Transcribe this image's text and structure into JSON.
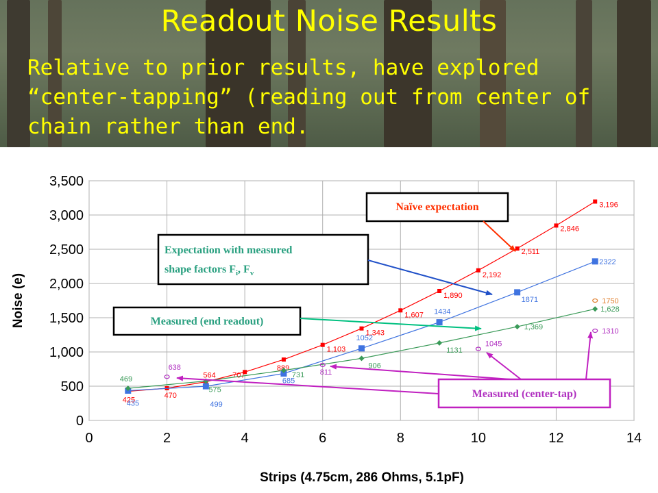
{
  "slide": {
    "title": "Readout Noise Results",
    "subtitle": "Relative to prior results, have explored “center-tapping” (reading out from center of chain rather than end."
  },
  "colors": {
    "title": "#ffff00",
    "naive": "#ff0000",
    "shape": "#3f73e0",
    "end": "#3a9a58",
    "center": "#b030c0",
    "callout_naive": "#ff3000",
    "callout_shape": "#2050c8",
    "callout_end": "#00c080",
    "callout_center": "#c020c0"
  },
  "chart_data": {
    "type": "scatter",
    "title": "",
    "xlabel": "Strips (4.75cm, 286 Ohms, 5.1pF)",
    "ylabel": "Noise (e)",
    "xlim": [
      0,
      14
    ],
    "ylim": [
      0,
      3500
    ],
    "x_ticks": [
      "0",
      "2",
      "4",
      "6",
      "8",
      "10",
      "12",
      "14"
    ],
    "y_ticks": [
      "0",
      "500",
      "1,000",
      "1,500",
      "2,000",
      "2,500",
      "3,000",
      "3,500"
    ],
    "grid": true,
    "series": [
      {
        "key": "naive",
        "marker": "square",
        "x": [
          1,
          2,
          3,
          4,
          5,
          6,
          7,
          8,
          9,
          10,
          11,
          12,
          13
        ],
        "y": [
          425,
          470,
          564,
          707,
          889,
          1103,
          1343,
          1607,
          1890,
          2192,
          2511,
          2846,
          3196
        ],
        "labels": [
          "425",
          "470",
          "564",
          "707",
          "889",
          "1,103",
          "1,343",
          "1,607",
          "1,890",
          "2,192",
          "2,511",
          "2,846",
          "3,196"
        ]
      },
      {
        "key": "shape",
        "marker": "bigsquare",
        "x": [
          1,
          3,
          5,
          7,
          9,
          11,
          13
        ],
        "y": [
          435,
          499,
          685,
          1052,
          1434,
          1871,
          2322
        ],
        "labels": [
          "435",
          "499",
          "685",
          "1052",
          "1434",
          "1871",
          "2322"
        ]
      },
      {
        "key": "end",
        "marker": "diamond",
        "x": [
          1,
          3,
          5,
          7,
          9,
          11,
          13
        ],
        "y": [
          469,
          575,
          731,
          906,
          1131,
          1369,
          1628
        ],
        "labels": [
          "469",
          "575",
          "731",
          "906",
          "1131",
          "1,369",
          "1,628"
        ]
      },
      {
        "key": "center",
        "marker": "circle",
        "x": [
          2,
          6,
          10,
          13
        ],
        "y": [
          638,
          811,
          1045,
          1310
        ],
        "labels": [
          "638",
          "811",
          "1045",
          "1310"
        ]
      },
      {
        "key": "center_extra",
        "marker": "circle",
        "x": [
          13
        ],
        "y": [
          1750
        ],
        "labels": [
          "1750"
        ]
      }
    ],
    "callouts": [
      {
        "key": "naive",
        "text": "Naïve expectation"
      },
      {
        "key": "shape",
        "line1": "Expectation with measured",
        "line2": "shape factors F",
        "sub1": "i",
        "sep": ", F",
        "sub2": "v"
      },
      {
        "key": "end",
        "text": "Measured (end readout)"
      },
      {
        "key": "center",
        "text": "Measured (center-tap)"
      }
    ]
  }
}
